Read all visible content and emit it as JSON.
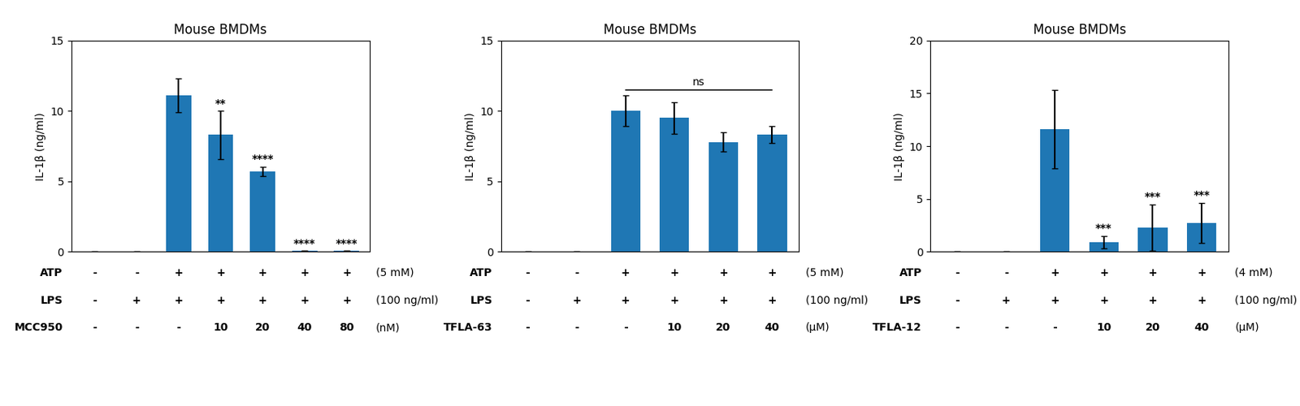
{
  "chart_data": [
    {
      "type": "bar",
      "title": "Mouse BMDMs",
      "ylabel": "IL-1β (ng/ml)",
      "categories": [
        null,
        null,
        null,
        null,
        null,
        null,
        null
      ],
      "values": [
        0,
        0,
        11.1,
        8.3,
        5.7,
        0.05,
        0.05
      ],
      "errors": [
        0,
        0,
        1.2,
        1.7,
        0.35,
        0,
        0
      ],
      "significance": [
        null,
        null,
        null,
        "**",
        "****",
        "****",
        "****"
      ],
      "ylim": [
        0,
        15
      ],
      "yticks": [
        0,
        5,
        10,
        15
      ],
      "tick_labels": "y",
      "table": [
        {
          "label": "ATP",
          "values": [
            "-",
            "-",
            "+",
            "+",
            "+",
            "+",
            "+"
          ],
          "unit": "(5 mM)"
        },
        {
          "label": "LPS",
          "values": [
            "-",
            "+",
            "+",
            "+",
            "+",
            "+",
            "+"
          ],
          "unit": "(100 ng/ml)"
        },
        {
          "label": "MCC950",
          "values": [
            "-",
            "-",
            "-",
            "10",
            "20",
            "40",
            "80"
          ],
          "unit": "(nM)"
        }
      ]
    },
    {
      "type": "bar",
      "title": "Mouse BMDMs",
      "ylabel": "IL-1β (ng/ml)",
      "categories": [
        null,
        null,
        null,
        null,
        null,
        null
      ],
      "values": [
        0,
        0,
        10.0,
        9.5,
        7.8,
        8.3
      ],
      "errors": [
        0,
        0,
        1.1,
        1.1,
        0.7,
        0.6
      ],
      "bracket": {
        "from": 2,
        "to": 5,
        "y": 11.5,
        "label": "ns"
      },
      "ylim": [
        0,
        15
      ],
      "yticks": [
        0,
        5,
        10,
        15
      ],
      "tick_labels": "y",
      "table": [
        {
          "label": "ATP",
          "values": [
            "-",
            "-",
            "+",
            "+",
            "+",
            "+"
          ],
          "unit": "(5 mM)"
        },
        {
          "label": "LPS",
          "values": [
            "-",
            "+",
            "+",
            "+",
            "+",
            "+"
          ],
          "unit": "(100 ng/ml)"
        },
        {
          "label": "TFLA-63",
          "values": [
            "-",
            "-",
            "-",
            "10",
            "20",
            "40"
          ],
          "unit": "(μM)"
        }
      ]
    },
    {
      "type": "bar",
      "title": "Mouse BMDMs",
      "ylabel": "IL-1β (ng/ml)",
      "categories": [
        null,
        null,
        null,
        null,
        null,
        null
      ],
      "values": [
        0,
        0,
        11.6,
        0.9,
        2.3,
        2.7
      ],
      "errors": [
        0,
        0,
        3.7,
        0.6,
        2.2,
        1.9
      ],
      "significance": [
        null,
        null,
        null,
        "***",
        "***",
        "***"
      ],
      "ylim": [
        0,
        20
      ],
      "yticks": [
        0,
        5,
        10,
        15,
        20
      ],
      "tick_labels": "y",
      "table": [
        {
          "label": "ATP",
          "values": [
            "-",
            "-",
            "+",
            "+",
            "+",
            "+"
          ],
          "unit": "(4 mM)"
        },
        {
          "label": "LPS",
          "values": [
            "-",
            "+",
            "+",
            "+",
            "+",
            "+"
          ],
          "unit": "(100 ng/ml)"
        },
        {
          "label": "TFLA-12",
          "values": [
            "-",
            "-",
            "-",
            "10",
            "20",
            "40"
          ],
          "unit": "(μM)"
        }
      ]
    }
  ]
}
